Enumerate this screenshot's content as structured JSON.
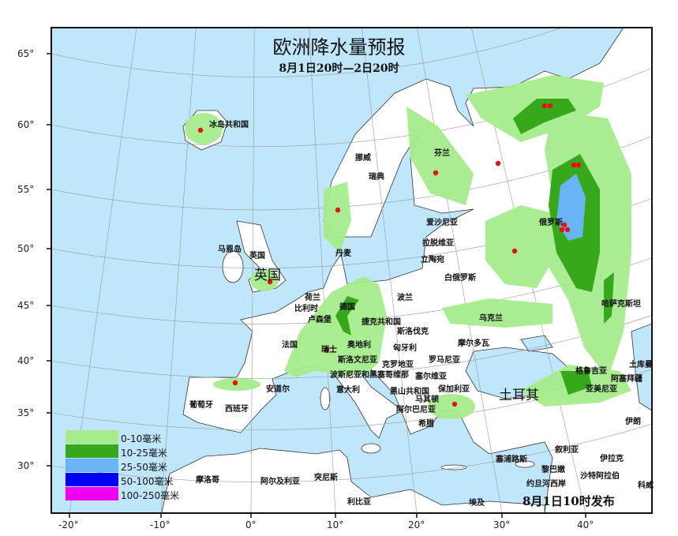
{
  "title": "欧洲降水量预报",
  "subtitle": "8月1日20时—2日20时",
  "publish": "8月1日10时发布",
  "colors": {
    "sea": "#bfe6fb",
    "land": "#ffffff",
    "border": "#333333"
  },
  "legend": [
    {
      "label": "0-10毫米",
      "color": "#a6ec8c"
    },
    {
      "label": "10-25毫米",
      "color": "#37a81c"
    },
    {
      "label": "25-50毫米",
      "color": "#68b4f7"
    },
    {
      "label": "50-100毫米",
      "color": "#0000f5"
    },
    {
      "label": "100-250毫米",
      "color": "#f000f0"
    }
  ],
  "lat_ticks": [
    "65°",
    "60°",
    "55°",
    "50°",
    "45°",
    "40°",
    "35°",
    "30°"
  ],
  "lon_ticks": [
    "-20°",
    "-10°",
    "0°",
    "10°",
    "20°",
    "30°",
    "40°"
  ],
  "labels": [
    "冰岛共和国",
    "挪威",
    "瑞典",
    "芬兰",
    "爱沙尼亚",
    "拉脱维亚",
    "立陶宛",
    "白俄罗斯",
    "丹麦",
    "马恩岛",
    "英国",
    "荷兰",
    "比利时",
    "卢森堡",
    "德国",
    "波兰",
    "捷克共和国",
    "斯洛伐克",
    "奥地利",
    "瑞士",
    "法国",
    "匈牙利",
    "斯洛文尼亚",
    "克罗地亚",
    "罗马尼亚",
    "摩尔多瓦",
    "乌克兰",
    "俄罗斯",
    "哈萨克斯坦",
    "波斯尼亚和黑塞哥维那",
    "塞尔维亚",
    "意大利",
    "黑山共和国",
    "保加利亚",
    "马其顿",
    "阿尔巴尼亚",
    "希腊",
    "安道尔",
    "葡萄牙",
    "西班牙",
    "格鲁吉亚",
    "亚美尼亚",
    "阿塞拜疆",
    "土库曼",
    "伊朗",
    "叙利亚",
    "伊拉克",
    "塞浦路斯",
    "黎巴嫩",
    "约旦河西岸",
    "科威",
    "沙特阿拉伯",
    "埃及",
    "利比亚",
    "突尼斯",
    "阿尔及利亚",
    "摩洛哥"
  ],
  "big_labels": [
    "英国",
    "土耳其"
  ]
}
